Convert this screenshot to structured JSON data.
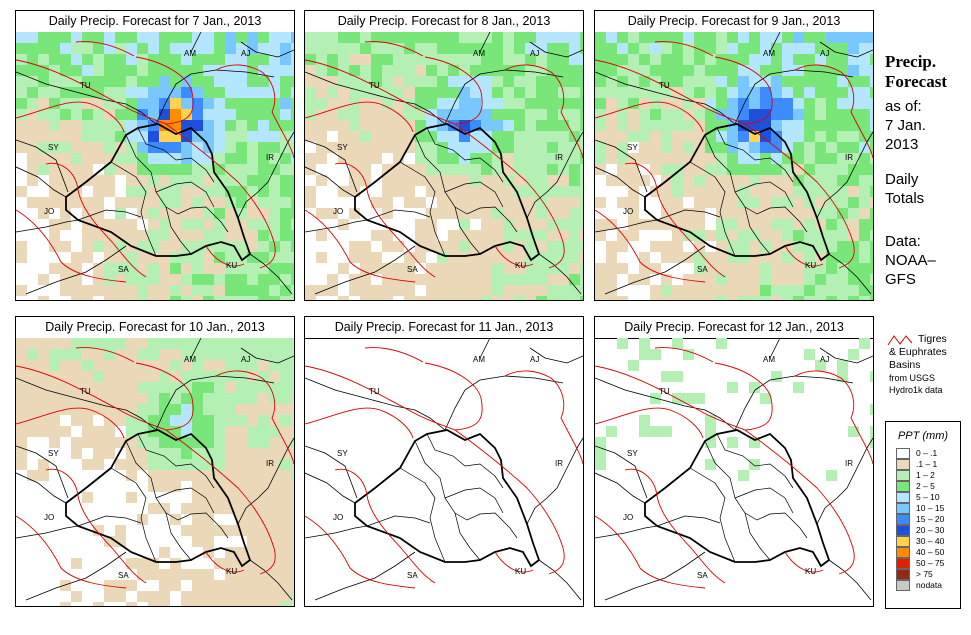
{
  "panels": [
    {
      "title": "Daily Precip. Forecast for  7 Jan., 2013",
      "intensity": 1.0
    },
    {
      "title": "Daily Precip. Forecast for  8 Jan., 2013",
      "intensity": 0.8
    },
    {
      "title": "Daily Precip. Forecast for  9 Jan., 2013",
      "intensity": 0.95
    },
    {
      "title": "Daily Precip. Forecast for  10 Jan., 2013",
      "intensity": 0.55
    },
    {
      "title": "Daily Precip. Forecast for  11 Jan., 2013",
      "intensity": 0.0
    },
    {
      "title": "Daily Precip. Forecast for  12 Jan., 2013",
      "intensity": 0.05
    }
  ],
  "country_labels": [
    "AM",
    "AJ",
    "TU",
    "SY",
    "IR",
    "JO",
    "SA",
    "KU"
  ],
  "sidebar": {
    "title_line1": "Precip.",
    "title_line2": "Forecast",
    "asof_line1": "as of:",
    "asof_line2": "7 Jan.",
    "asof_line3": "2013",
    "daily_line1": "Daily",
    "daily_line2": "Totals",
    "source_line1": "Data:",
    "source_line2": "NOAA–",
    "source_line3": "GFS"
  },
  "basin_note": {
    "line1": "Tigres",
    "line2": "& Euphrates",
    "line3": "Basins",
    "line4": "from USGS",
    "line5": "Hydro1k data"
  },
  "legend": {
    "title": "PPT (mm)",
    "items": [
      {
        "label": "0 – .1",
        "color": "#ffffff"
      },
      {
        "label": ".1 – 1",
        "color": "#ead8b8"
      },
      {
        "label": "1 – 2",
        "color": "#b4f0b4"
      },
      {
        "label": "2 – 5",
        "color": "#78e678"
      },
      {
        "label": "5 – 10",
        "color": "#b4e6ff"
      },
      {
        "label": "10 – 15",
        "color": "#78c8ff"
      },
      {
        "label": "15 – 20",
        "color": "#3c8cff"
      },
      {
        "label": "20 – 30",
        "color": "#1e50dc"
      },
      {
        "label": "30 – 40",
        "color": "#ffd250"
      },
      {
        "label": "40 – 50",
        "color": "#ff8c00"
      },
      {
        "label": "50 – 75",
        "color": "#e61e00"
      },
      {
        "label": "> 75",
        "color": "#962814"
      },
      {
        "label": "nodata",
        "color": "#c8c8c8"
      }
    ]
  }
}
